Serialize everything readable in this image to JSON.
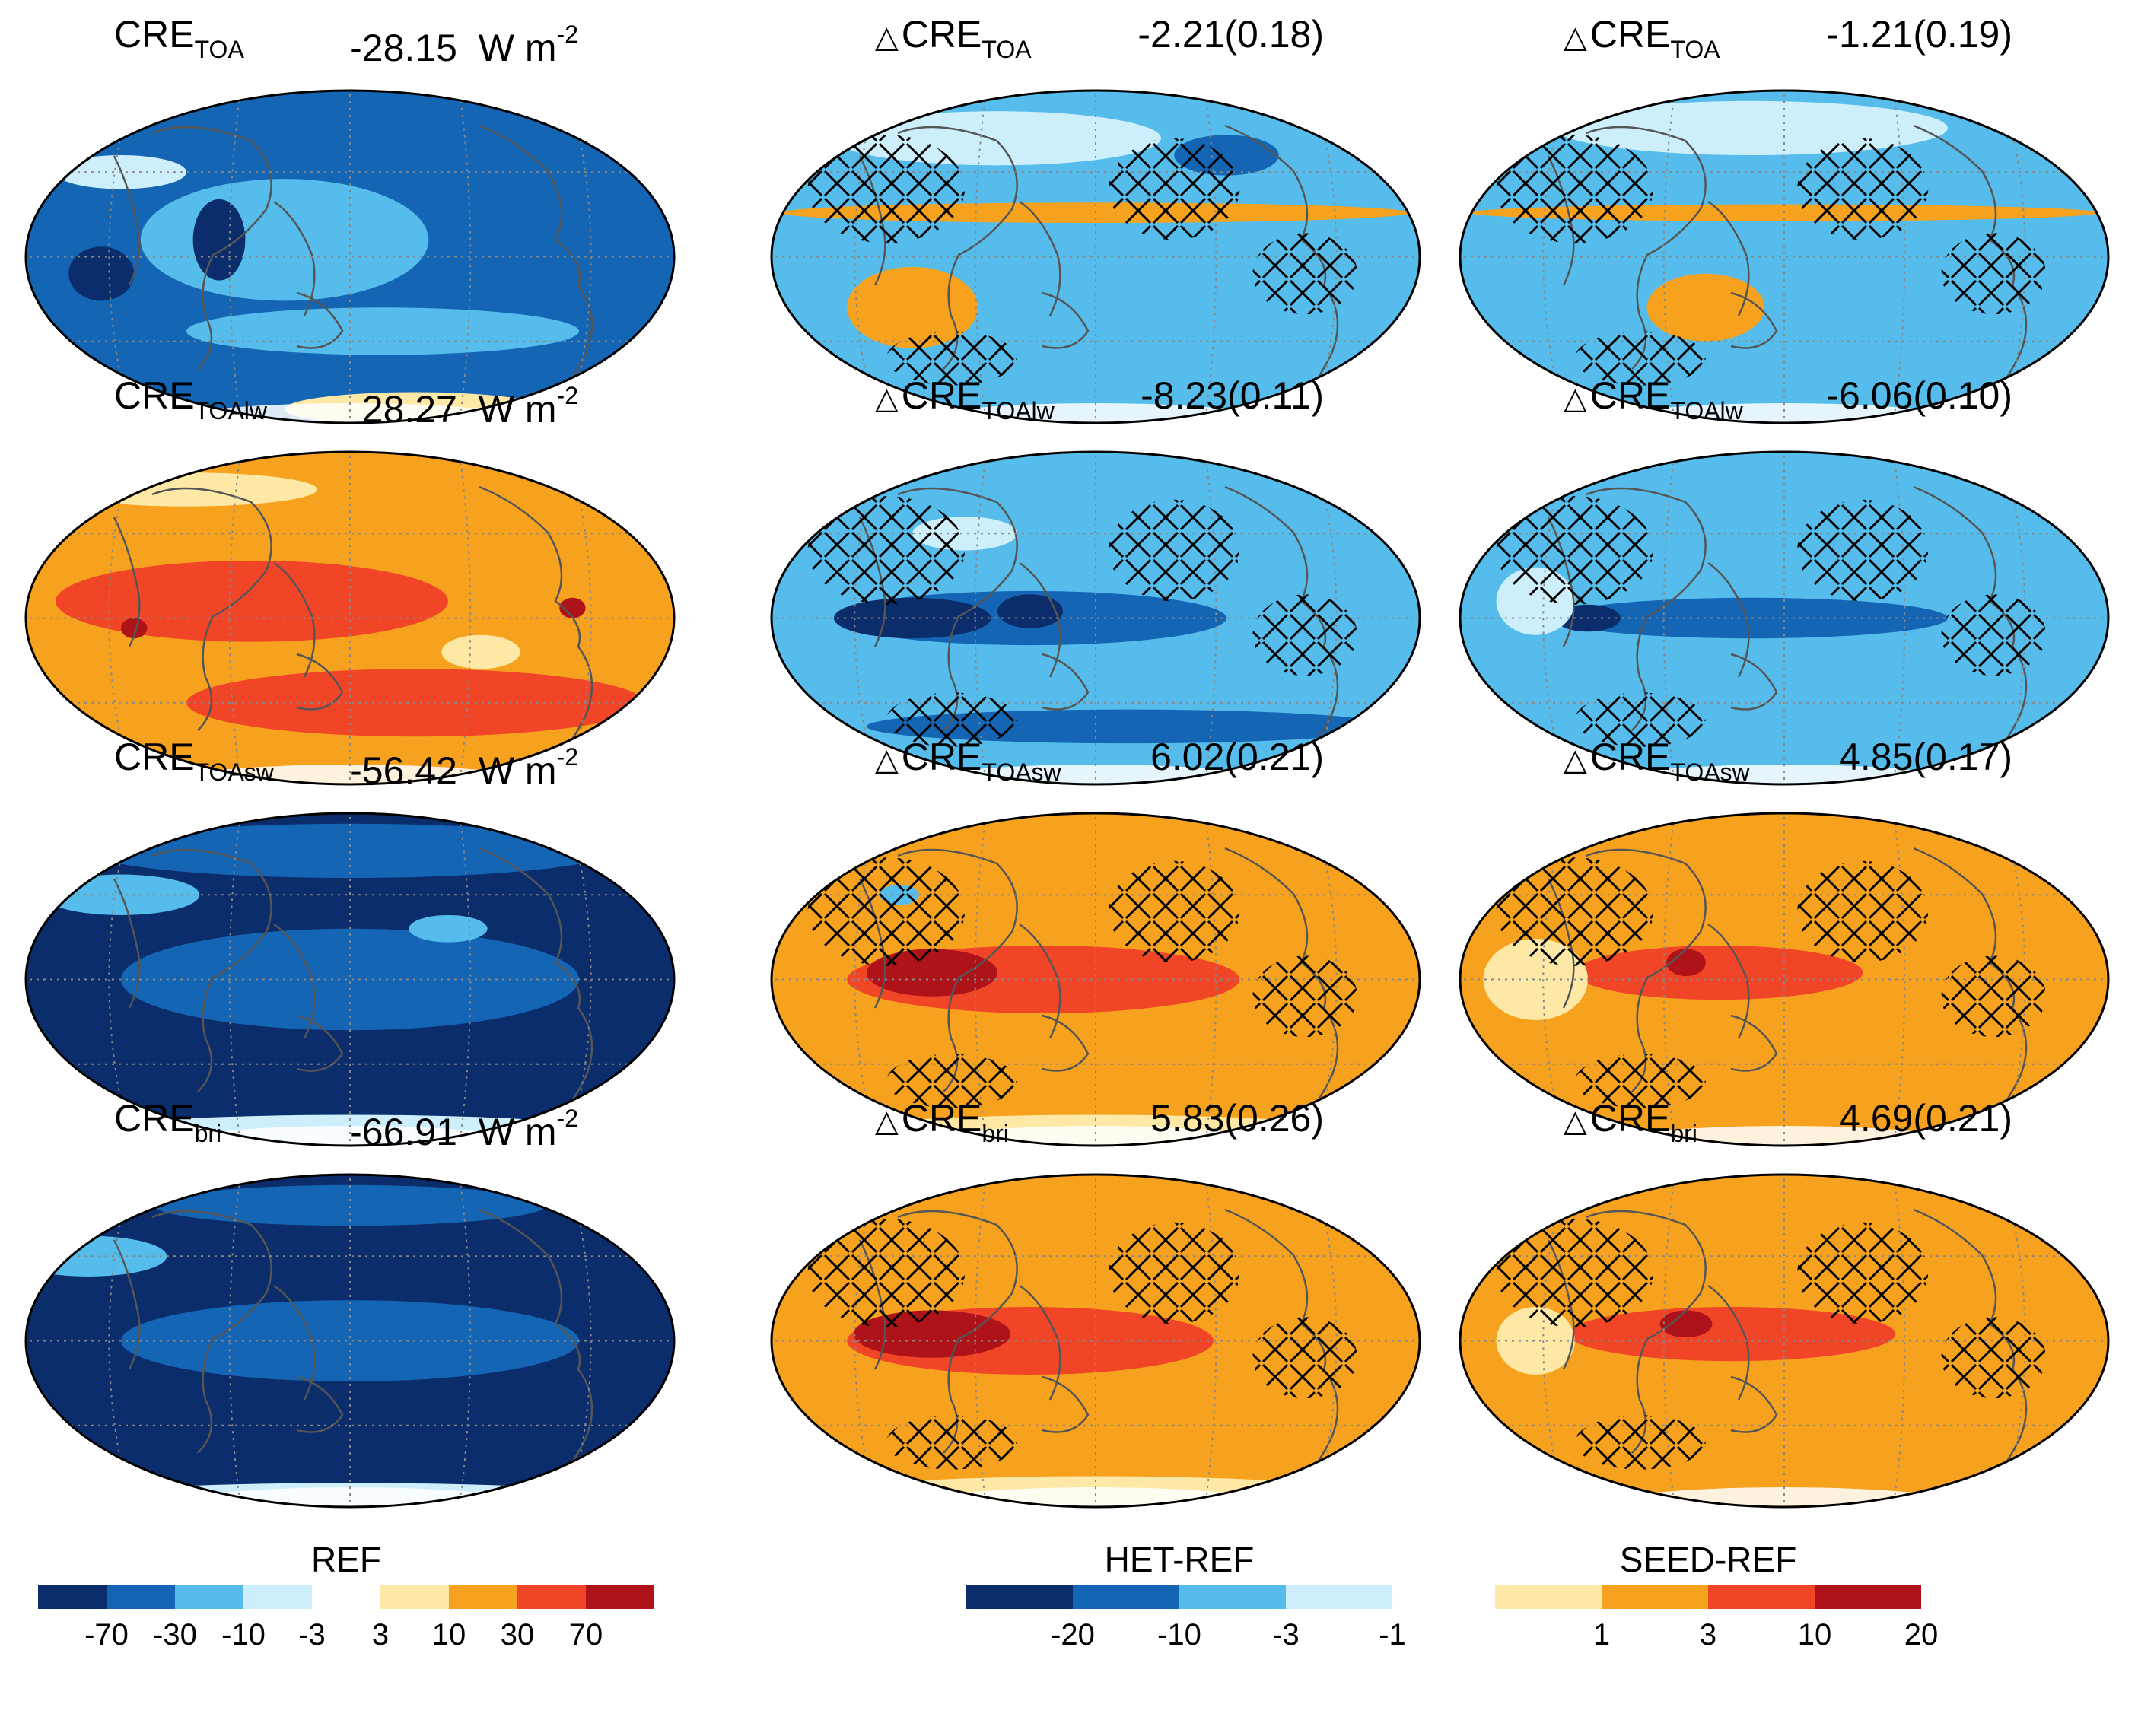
{
  "colors": {
    "c_m70": "#0b2d6b",
    "c_m30": "#1565b5",
    "c_m10": "#56bceb",
    "c_m3": "#cdeefb",
    "c_0": "#ffffff",
    "c_3": "#fde8a6",
    "c_10": "#f7a21e",
    "c_30": "#f14527",
    "c_70": "#ad1319",
    "land": "#555555",
    "hatch": "#000000"
  },
  "units": "W m",
  "units_exp": "-2",
  "delta_symbol": "△",
  "panels": [
    {
      "id": "p1",
      "base": "CRE",
      "sub": "TOA",
      "delta": false,
      "value": "-28.15",
      "fill": "c_m30",
      "blobs": [
        [
          "c_m10",
          0.4,
          0.45,
          0.22,
          0.18
        ],
        [
          "c_m70",
          0.12,
          0.55,
          0.05,
          0.08
        ],
        [
          "c_m3",
          0.15,
          0.25,
          0.1,
          0.05
        ],
        [
          "c_3",
          0.6,
          0.95,
          0.2,
          0.05
        ],
        [
          "c_m10",
          0.55,
          0.72,
          0.3,
          0.07
        ],
        [
          "c_m70",
          0.3,
          0.45,
          0.04,
          0.12
        ]
      ],
      "hatch": false
    },
    {
      "id": "p2",
      "base": "CRE",
      "sub": "TOA",
      "delta": true,
      "value": "-2.21(0.18)",
      "fill": "c_m10",
      "blobs": [
        [
          "c_10",
          0.22,
          0.65,
          0.1,
          0.12
        ],
        [
          "c_10",
          0.5,
          0.37,
          0.48,
          0.03
        ],
        [
          "c_m3",
          0.35,
          0.15,
          0.25,
          0.08
        ],
        [
          "c_m30",
          0.7,
          0.2,
          0.08,
          0.06
        ]
      ],
      "hatch": true
    },
    {
      "id": "p3",
      "base": "CRE",
      "sub": "TOA",
      "delta": true,
      "value": "-1.21(0.19)",
      "fill": "c_m10",
      "blobs": [
        [
          "c_10",
          0.38,
          0.65,
          0.09,
          0.1
        ],
        [
          "c_10",
          0.5,
          0.37,
          0.48,
          0.025
        ],
        [
          "c_m3",
          0.45,
          0.12,
          0.3,
          0.08
        ]
      ],
      "hatch": true
    },
    {
      "id": "p4",
      "base": "CRE",
      "sub": "TOAlw",
      "delta": false,
      "value": "28.27",
      "fill": "c_10",
      "blobs": [
        [
          "c_30",
          0.35,
          0.45,
          0.3,
          0.12
        ],
        [
          "c_30",
          0.6,
          0.75,
          0.35,
          0.1
        ],
        [
          "c_70",
          0.17,
          0.53,
          0.02,
          0.03
        ],
        [
          "c_70",
          0.84,
          0.47,
          0.02,
          0.03
        ],
        [
          "c_3",
          0.7,
          0.6,
          0.06,
          0.05
        ],
        [
          "c_3",
          0.25,
          0.12,
          0.2,
          0.05
        ]
      ],
      "hatch": false
    },
    {
      "id": "p5",
      "base": "CRE",
      "sub": "TOAlw",
      "delta": true,
      "value": "-8.23(0.11)",
      "fill": "c_m10",
      "blobs": [
        [
          "c_m30",
          0.4,
          0.5,
          0.3,
          0.08
        ],
        [
          "c_m70",
          0.22,
          0.5,
          0.12,
          0.06
        ],
        [
          "c_m70",
          0.4,
          0.48,
          0.05,
          0.05
        ],
        [
          "c_m30",
          0.55,
          0.82,
          0.4,
          0.05
        ],
        [
          "c_m3",
          0.3,
          0.25,
          0.08,
          0.05
        ]
      ],
      "hatch": true
    },
    {
      "id": "p6",
      "base": "CRE",
      "sub": "TOAlw",
      "delta": true,
      "value": "-6.06(0.10)",
      "fill": "c_m10",
      "blobs": [
        [
          "c_m30",
          0.45,
          0.5,
          0.3,
          0.06
        ],
        [
          "c_m70",
          0.2,
          0.5,
          0.05,
          0.04
        ],
        [
          "c_m3",
          0.12,
          0.45,
          0.06,
          0.1
        ]
      ],
      "hatch": true
    },
    {
      "id": "p7",
      "base": "CRE",
      "sub": "TOAsw",
      "delta": false,
      "value": "-56.42",
      "fill": "c_m70",
      "blobs": [
        [
          "c_m30",
          0.5,
          0.5,
          0.35,
          0.15
        ],
        [
          "c_m10",
          0.15,
          0.25,
          0.12,
          0.06
        ],
        [
          "c_m3",
          0.5,
          0.95,
          0.4,
          0.05
        ],
        [
          "c_m30",
          0.5,
          0.12,
          0.4,
          0.08
        ],
        [
          "c_m10",
          0.65,
          0.35,
          0.06,
          0.04
        ]
      ],
      "hatch": false
    },
    {
      "id": "p8",
      "base": "CRE",
      "sub": "TOAsw",
      "delta": true,
      "value": "6.02(0.21)",
      "fill": "c_10",
      "blobs": [
        [
          "c_30",
          0.42,
          0.5,
          0.3,
          0.1
        ],
        [
          "c_70",
          0.25,
          0.48,
          0.1,
          0.07
        ],
        [
          "c_3",
          0.5,
          0.95,
          0.4,
          0.05
        ],
        [
          "c_m10",
          0.2,
          0.25,
          0.03,
          0.03
        ]
      ],
      "hatch": true
    },
    {
      "id": "p9",
      "base": "CRE",
      "sub": "TOAsw",
      "delta": true,
      "value": "4.85(0.17)",
      "fill": "c_10",
      "blobs": [
        [
          "c_30",
          0.4,
          0.48,
          0.22,
          0.08
        ],
        [
          "c_70",
          0.35,
          0.45,
          0.03,
          0.04
        ],
        [
          "c_3",
          0.12,
          0.5,
          0.08,
          0.12
        ]
      ],
      "hatch": true
    },
    {
      "id": "p10",
      "base": "CRE",
      "sub": "bri",
      "delta": false,
      "value": "-66.91",
      "fill": "c_m70",
      "blobs": [
        [
          "c_m30",
          0.5,
          0.5,
          0.35,
          0.12
        ],
        [
          "c_m10",
          0.1,
          0.25,
          0.12,
          0.06
        ],
        [
          "c_m3",
          0.5,
          0.96,
          0.4,
          0.04
        ],
        [
          "c_m30",
          0.5,
          0.1,
          0.3,
          0.06
        ]
      ],
      "hatch": false
    },
    {
      "id": "p11",
      "base": "CRE",
      "sub": "bri",
      "delta": true,
      "value": "5.83(0.26)",
      "fill": "c_10",
      "blobs": [
        [
          "c_30",
          0.4,
          0.5,
          0.28,
          0.1
        ],
        [
          "c_70",
          0.25,
          0.48,
          0.12,
          0.07
        ],
        [
          "c_3",
          0.5,
          0.95,
          0.4,
          0.05
        ]
      ],
      "hatch": true
    },
    {
      "id": "p12",
      "base": "CRE",
      "sub": "bri",
      "delta": true,
      "value": "4.69(0.21)",
      "fill": "c_10",
      "blobs": [
        [
          "c_30",
          0.42,
          0.48,
          0.25,
          0.08
        ],
        [
          "c_70",
          0.35,
          0.45,
          0.04,
          0.04
        ],
        [
          "c_3",
          0.12,
          0.5,
          0.06,
          0.1
        ]
      ],
      "hatch": true
    }
  ],
  "colorbars": [
    {
      "id": "cb-ref",
      "title": "REF",
      "swatches": [
        "c_m70",
        "c_m30",
        "c_m10",
        "c_m3",
        "c_0",
        "c_3",
        "c_10",
        "c_30",
        "c_70"
      ],
      "ticks": [
        "-70",
        "-30",
        "-10",
        "-3",
        "3",
        "10",
        "30",
        "70"
      ]
    },
    {
      "id": "cb-het",
      "title": "HET-REF",
      "swatches": [
        "c_m70",
        "c_m30",
        "c_m10",
        "c_m3"
      ],
      "ticks": [
        "-20",
        "-10",
        "-3",
        "-1"
      ]
    },
    {
      "id": "cb-seed",
      "title": "SEED-REF",
      "swatches": [
        "c_3",
        "c_10",
        "c_30",
        "c_70"
      ],
      "ticks": [
        "1",
        "3",
        "10",
        "20"
      ]
    }
  ]
}
